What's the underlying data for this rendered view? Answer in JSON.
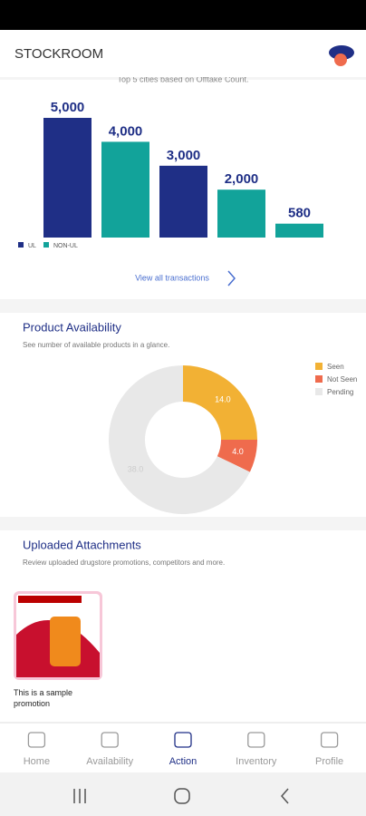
{
  "header": {
    "title": "STOCKROOM"
  },
  "chart_data": [
    {
      "type": "bar",
      "subtitle": "Top 5 cities based on Offtake Count.",
      "categories": [
        null,
        null,
        null,
        null,
        null
      ],
      "series": [
        {
          "name": "UL",
          "color": "#1f2f86",
          "values": [
            5000,
            null,
            3000,
            null,
            null
          ],
          "value_labels": [
            "5,000",
            null,
            "3,000",
            null,
            null
          ]
        },
        {
          "name": "NON-UL",
          "color": "#12a39a",
          "values": [
            null,
            4000,
            null,
            2000,
            580
          ],
          "value_labels": [
            null,
            "4,000",
            null,
            "2,000",
            "580"
          ]
        }
      ],
      "ylim": [
        0,
        5000
      ],
      "link": "View all transactions"
    },
    {
      "type": "pie",
      "title": "Product Availability",
      "subtitle": "See number of available products in a glance.",
      "categories": [
        "Seen",
        "Not Seen",
        "Pending"
      ],
      "values": [
        14.0,
        4.0,
        38.0
      ],
      "value_labels": [
        "14.0",
        "4.0",
        "38.0"
      ],
      "colors": [
        "#f2b134",
        "#ef6b4d",
        "#e8e8e8"
      ],
      "donut": true,
      "legend": "top-right"
    }
  ],
  "attachments": {
    "title": "Uploaded Attachments",
    "subtitle": "Review uploaded drugstore promotions, competitors and more.",
    "items": [
      {
        "caption": "This is a sample promotion"
      }
    ]
  },
  "nav": {
    "items": [
      "Home",
      "Availability",
      "Action",
      "Inventory",
      "Profile"
    ],
    "active": 2
  }
}
